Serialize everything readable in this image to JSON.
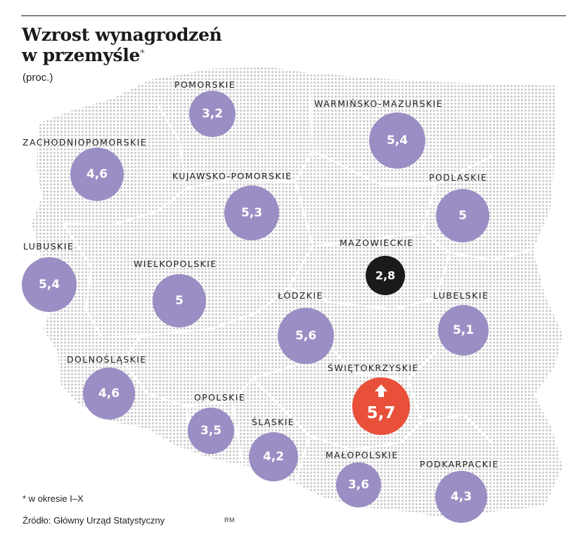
{
  "header": {
    "title_line1": "Wzrost wynagrodzeń",
    "title_line2": "w przemyśle",
    "title_marker": "*",
    "unit": "(proc.)"
  },
  "colors": {
    "bubble": "#9b8ec4",
    "highest": "#e8503a",
    "lowest": "#1a1a1a",
    "map_dots": "#c9c9c9"
  },
  "regions": [
    {
      "name": "POMORSKIE",
      "value": "3,2",
      "kind": "normal"
    },
    {
      "name": "WARMIŃSKO-MAZURSKIE",
      "value": "5,4",
      "kind": "normal"
    },
    {
      "name": "ZACHODNIOPOMORSKIE",
      "value": "4,6",
      "kind": "normal"
    },
    {
      "name": "KUJAWSKO-POMORSKIE",
      "value": "5,3",
      "kind": "normal"
    },
    {
      "name": "PODLASKIE",
      "value": "5",
      "kind": "normal"
    },
    {
      "name": "MAZOWIECKIE",
      "value": "2,8",
      "kind": "lowest"
    },
    {
      "name": "LUBUSKIE",
      "value": "5,4",
      "kind": "normal"
    },
    {
      "name": "WIELKOPOLSKIE",
      "value": "5",
      "kind": "normal"
    },
    {
      "name": "ŁÓDZKIE",
      "value": "5,6",
      "kind": "normal"
    },
    {
      "name": "LUBELSKIE",
      "value": "5,1",
      "kind": "normal"
    },
    {
      "name": "DOLNOŚLĄSKIE",
      "value": "4,6",
      "kind": "normal"
    },
    {
      "name": "ŚWIĘTOKRZYSKIE",
      "value": "5,7",
      "kind": "highest"
    },
    {
      "name": "OPOLSKIE",
      "value": "3,5",
      "kind": "normal"
    },
    {
      "name": "ŚLĄSKIE",
      "value": "4,2",
      "kind": "normal"
    },
    {
      "name": "MAŁOPOLSKIE",
      "value": "3,6",
      "kind": "normal"
    },
    {
      "name": "PODKARPACKIE",
      "value": "4,3",
      "kind": "normal"
    }
  ],
  "footnote": "* w okresie I–X",
  "source": "Źródło: Główny Urząd Statystyczny",
  "credit": "RM"
}
